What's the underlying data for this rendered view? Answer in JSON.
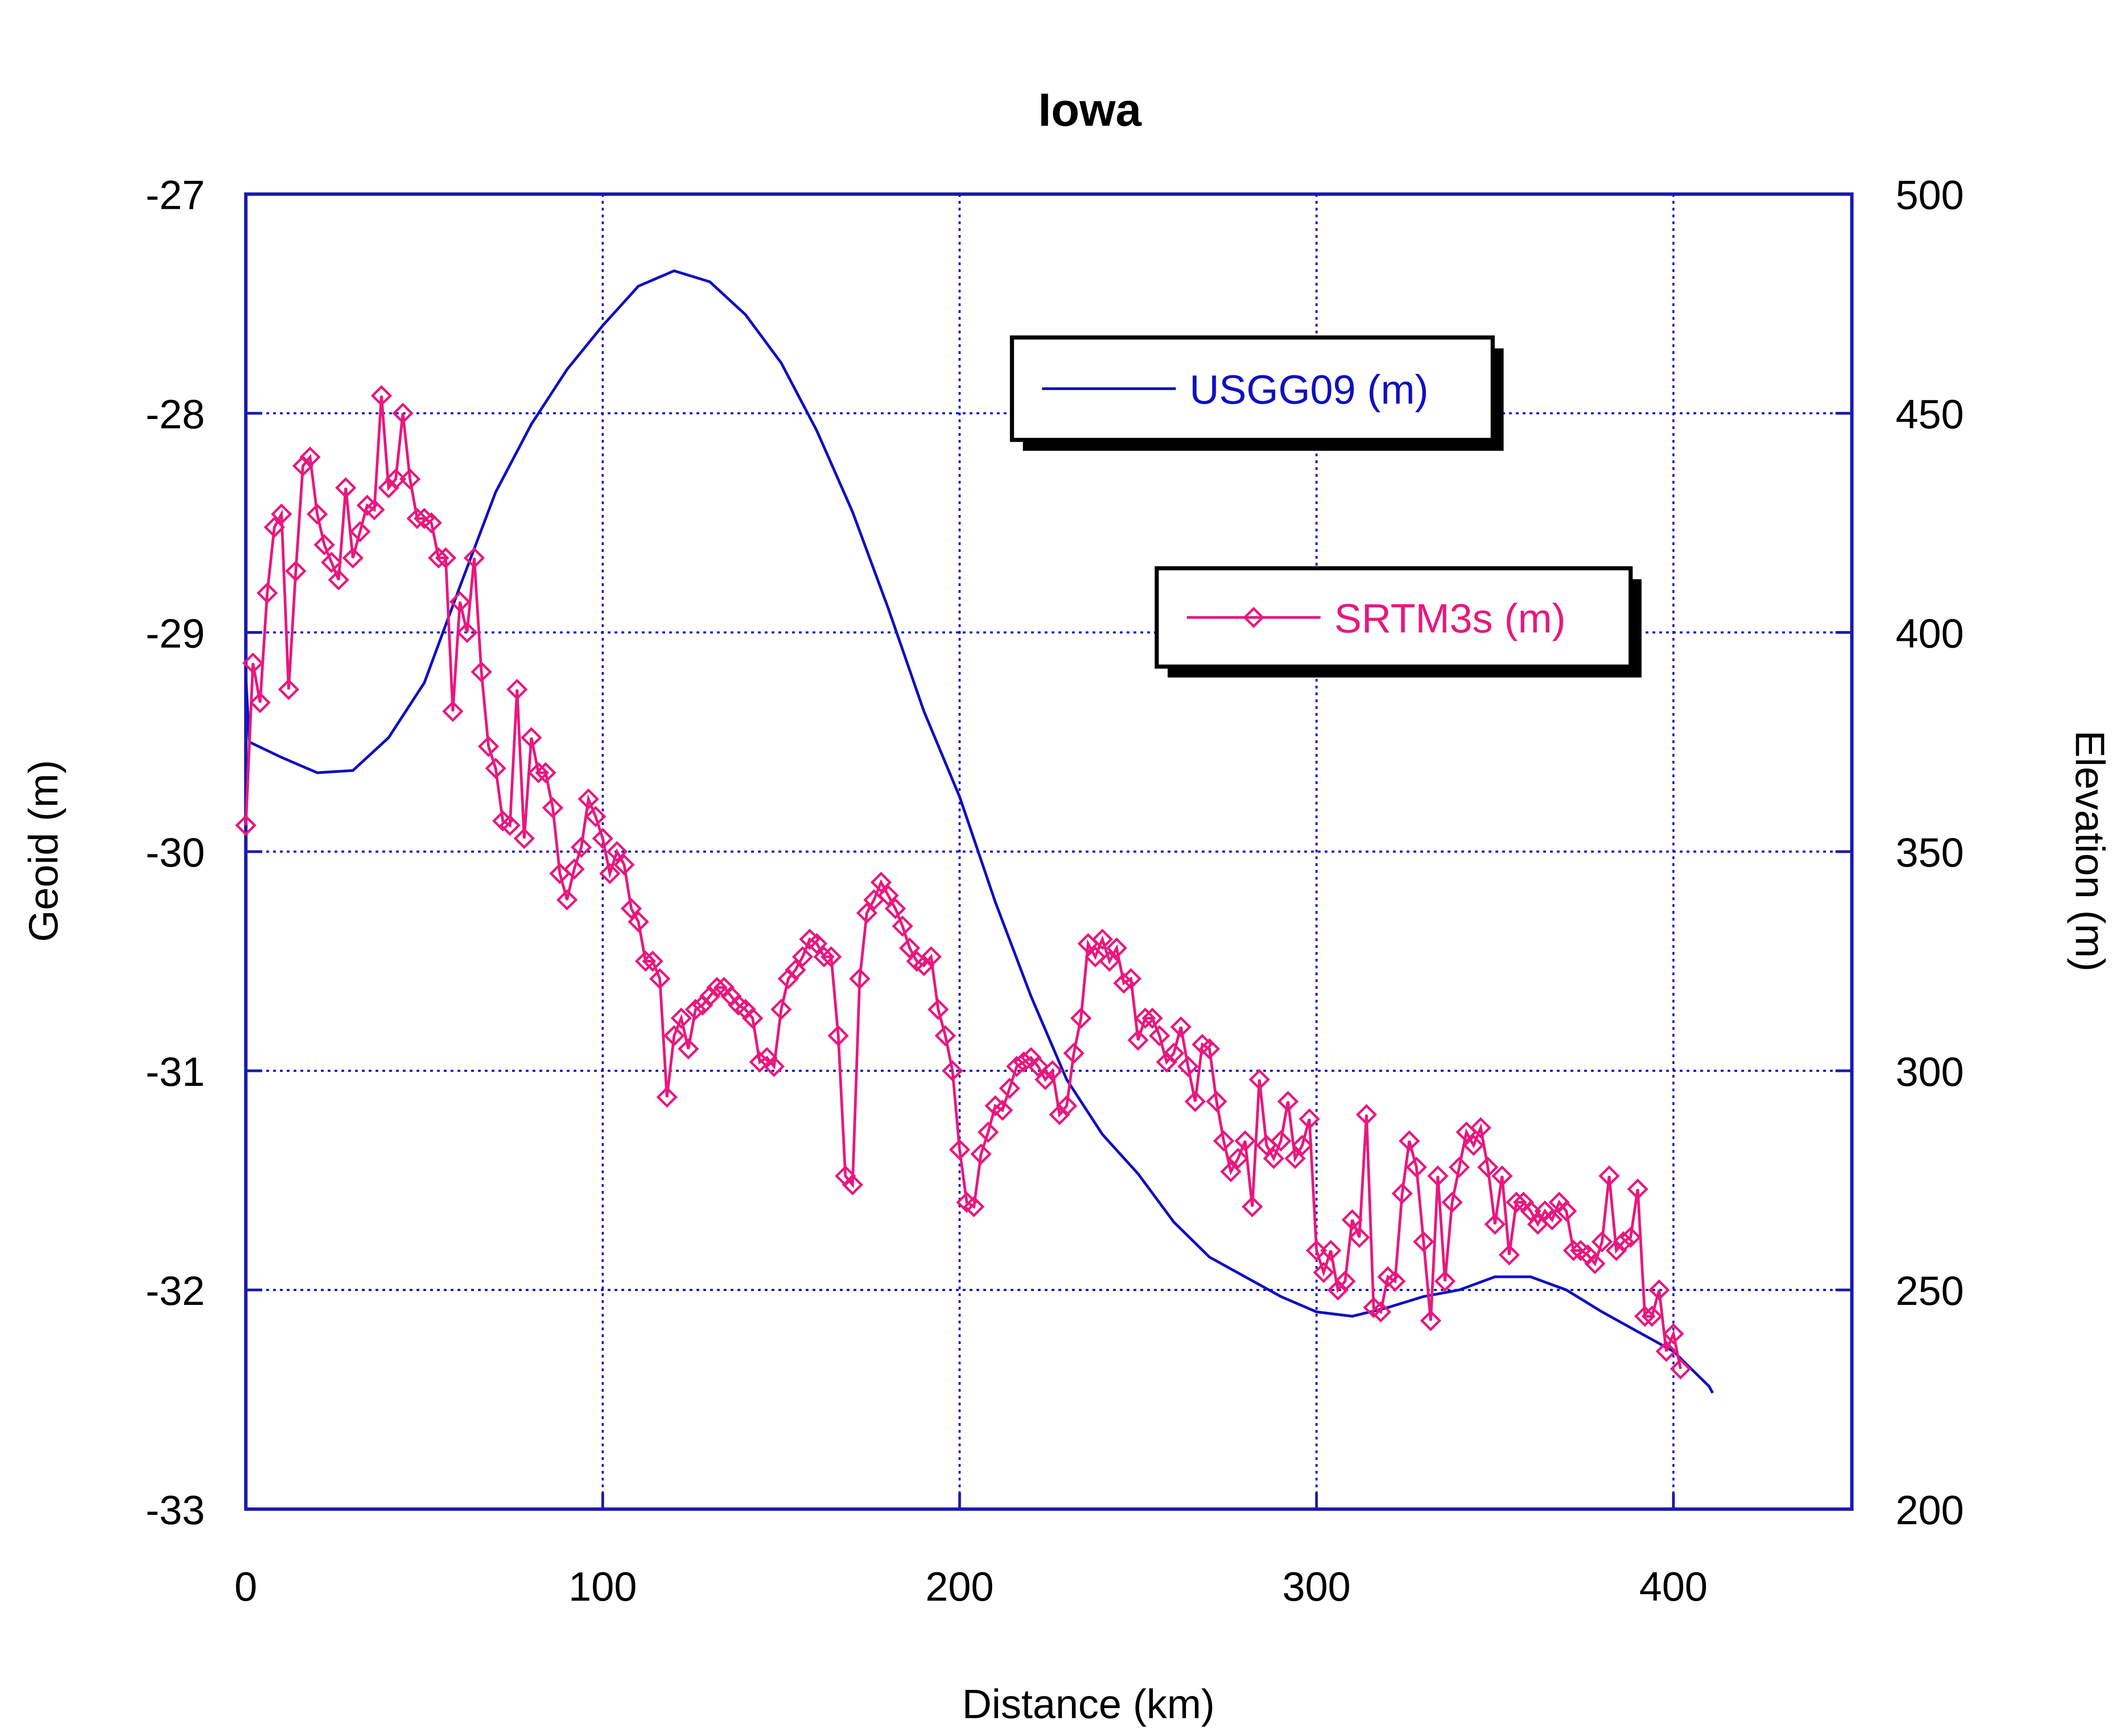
{
  "chart_data": {
    "type": "line",
    "title": "Iowa",
    "x_label": "Distance (km)",
    "y_label": "Geoid (m)",
    "y2_label": "Elevation (m)",
    "xlim": [
      0,
      450
    ],
    "xticks": [
      0,
      100,
      200,
      300,
      400
    ],
    "ylim": [
      -33,
      -27
    ],
    "yticks": [
      -33,
      -32,
      -31,
      -30,
      -29,
      -28,
      -27
    ],
    "y2lim": [
      200,
      500
    ],
    "y2ticks": [
      200,
      250,
      300,
      350,
      400,
      450,
      500
    ],
    "grid": true,
    "series": [
      {
        "name": "USGG09 (m)",
        "color": "#1010c0",
        "marker": "none",
        "x": [
          0,
          1,
          10,
          20,
          30,
          40,
          50,
          60,
          70,
          80,
          90,
          100,
          110,
          120,
          130,
          140,
          150,
          160,
          170,
          180,
          190,
          200,
          210,
          220,
          230,
          240,
          250,
          260,
          270,
          280,
          290,
          300,
          310,
          320,
          330,
          340,
          350,
          360,
          370,
          380,
          390,
          400,
          410,
          411
        ],
        "values": [
          -29.2,
          -29.5,
          -29.57,
          -29.64,
          -29.63,
          -29.48,
          -29.23,
          -28.79,
          -28.36,
          -28.05,
          -27.8,
          -27.6,
          -27.42,
          -27.35,
          -27.4,
          -27.55,
          -27.77,
          -28.08,
          -28.45,
          -28.89,
          -29.36,
          -29.75,
          -30.23,
          -30.66,
          -31.04,
          -31.29,
          -31.47,
          -31.69,
          -31.85,
          -31.94,
          -32.03,
          -32.1,
          -32.12,
          -32.08,
          -32.03,
          -32.0,
          -31.94,
          -31.94,
          -32.0,
          -32.1,
          -32.19,
          -32.28,
          -32.44,
          -32.47
        ]
      },
      {
        "name": "SRTM3s (m)",
        "color": "#e8187e",
        "marker": "diamond",
        "axis": "y2",
        "x": [
          0,
          2,
          4,
          6,
          8,
          10,
          12,
          14,
          16,
          18,
          20,
          22,
          24,
          26,
          28,
          30,
          32,
          34,
          36,
          38,
          40,
          42,
          44,
          46,
          48,
          50,
          52,
          54,
          56,
          58,
          60,
          62,
          64,
          66,
          68,
          70,
          72,
          74,
          76,
          78,
          80,
          82,
          84,
          86,
          88,
          90,
          92,
          94,
          96,
          98,
          100,
          102,
          104,
          106,
          108,
          110,
          112,
          114,
          116,
          118,
          120,
          122,
          124,
          126,
          128,
          130,
          132,
          134,
          136,
          138,
          140,
          142,
          144,
          146,
          148,
          150,
          152,
          154,
          156,
          158,
          160,
          162,
          164,
          166,
          168,
          170,
          172,
          174,
          176,
          178,
          180,
          182,
          184,
          186,
          188,
          190,
          192,
          194,
          196,
          198,
          200,
          202,
          204,
          206,
          208,
          210,
          212,
          214,
          216,
          218,
          220,
          222,
          224,
          226,
          228,
          230,
          232,
          234,
          236,
          238,
          240,
          242,
          244,
          246,
          248,
          250,
          252,
          254,
          256,
          258,
          260,
          262,
          264,
          266,
          268,
          270,
          272,
          274,
          276,
          278,
          280,
          282,
          284,
          286,
          288,
          290,
          292,
          294,
          296,
          298,
          300,
          302,
          304,
          306,
          308,
          310,
          312,
          314,
          316,
          318,
          320,
          322,
          324,
          326,
          328,
          330,
          332,
          334,
          336,
          338,
          340,
          342,
          344,
          346,
          348,
          350,
          352,
          354,
          356,
          358,
          360,
          362,
          364,
          366,
          368,
          370,
          372,
          374,
          376,
          378,
          380,
          382,
          384,
          386,
          388,
          390,
          392,
          394,
          396,
          398,
          400,
          402
        ],
        "values": [
          356,
          393,
          384,
          409,
          424,
          427,
          387,
          414,
          438,
          440,
          427,
          420,
          416,
          412,
          433,
          417,
          423,
          429,
          428,
          454,
          433,
          435,
          450,
          435,
          426,
          426,
          425,
          417,
          417,
          382,
          407,
          400,
          417,
          391,
          374,
          369,
          357,
          356,
          387,
          353,
          376,
          368,
          368,
          360,
          345,
          339,
          346,
          351,
          362,
          358,
          353,
          345,
          350,
          347,
          337,
          334,
          325,
          325,
          321,
          294,
          308,
          312,
          305,
          314,
          315,
          317,
          319,
          319,
          317,
          315,
          314,
          312,
          302,
          303,
          301,
          314,
          321,
          323,
          326,
          330,
          329,
          326,
          326,
          308,
          276,
          274,
          321,
          336,
          339,
          343,
          340,
          337,
          333,
          328,
          325,
          324,
          326,
          314,
          308,
          300,
          282,
          270,
          269,
          281,
          286,
          292,
          291,
          296,
          301,
          302,
          303,
          301,
          298,
          300,
          290,
          292,
          304,
          312,
          329,
          326,
          330,
          325,
          328,
          320,
          321,
          307,
          312,
          312,
          308,
          302,
          304,
          310,
          301,
          293,
          306,
          305,
          293,
          284,
          277,
          280,
          284,
          269,
          298,
          283,
          280,
          284,
          293,
          280,
          283,
          289,
          259,
          254,
          259,
          250,
          252,
          266,
          262,
          290,
          246,
          245,
          253,
          252,
          272,
          284,
          278,
          261,
          243,
          276,
          252,
          270,
          278,
          286,
          283,
          287,
          278,
          265,
          276,
          258,
          270,
          270,
          268,
          265,
          268,
          266,
          270,
          268,
          259,
          259,
          258,
          256,
          261,
          276,
          259,
          261,
          262,
          273,
          244,
          244,
          250,
          236,
          240,
          232
        ]
      }
    ]
  }
}
